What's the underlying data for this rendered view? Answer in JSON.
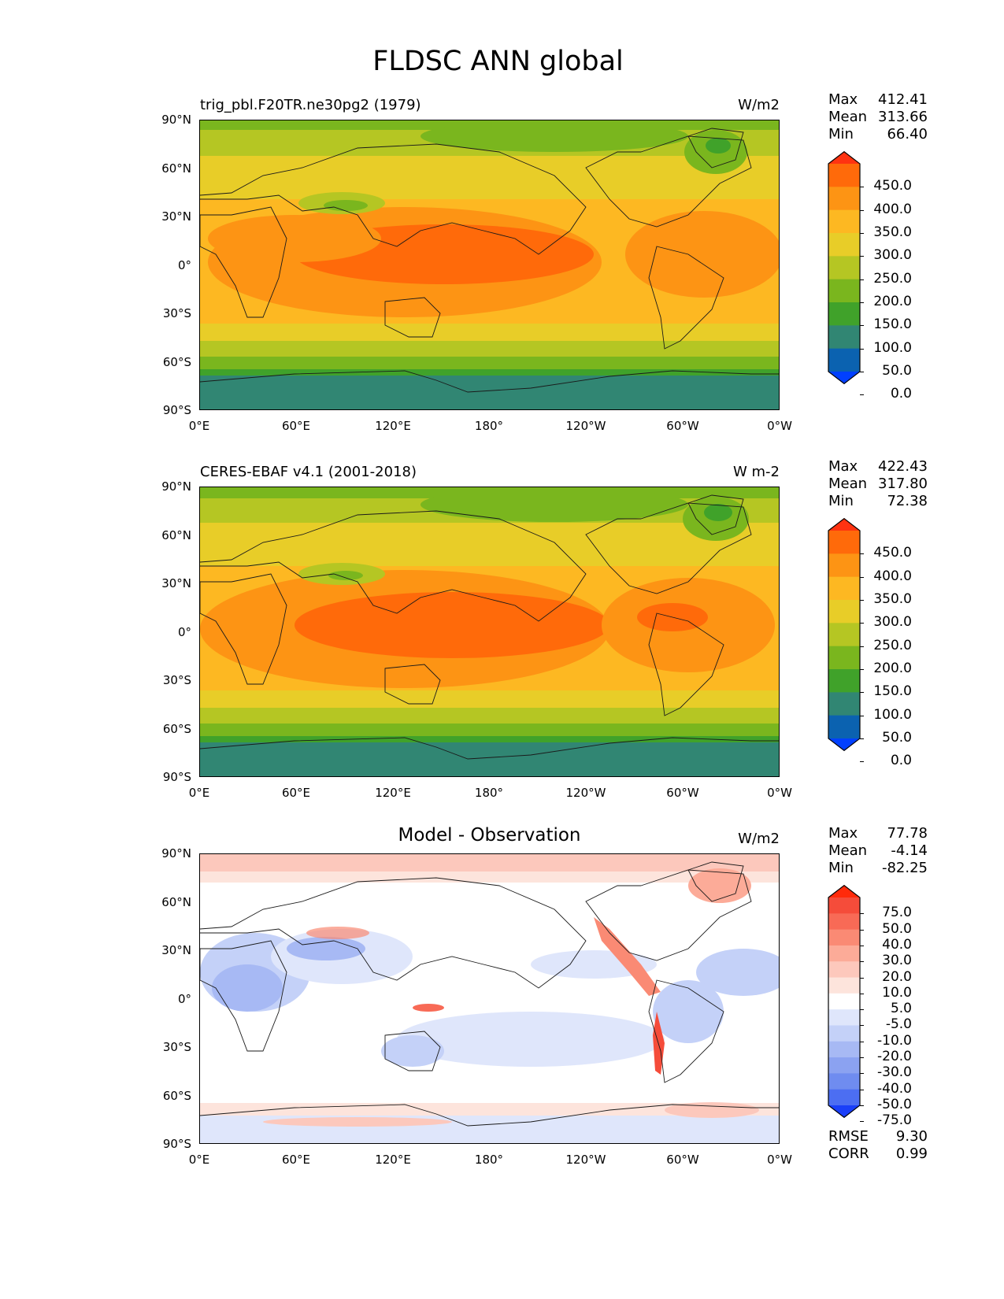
{
  "title": "FLDSC ANN global",
  "x_ticks": [
    "0°E",
    "60°E",
    "120°E",
    "180°",
    "120°W",
    "60°W",
    "0°W"
  ],
  "y_ticks": [
    "90°N",
    "60°N",
    "30°N",
    "0°",
    "30°S",
    "60°S",
    "90°S"
  ],
  "panels": [
    {
      "title_left": "trig_pbl.F20TR.ne30pg2 (1979)",
      "title_center": "",
      "units": "W/m2",
      "stats": {
        "max_label": "Max",
        "max": "412.41",
        "mean_label": "Mean",
        "mean": "313.66",
        "min_label": "Min",
        "min": "66.40"
      },
      "colorbar": {
        "labels": [
          "450.0",
          "400.0",
          "350.0",
          "300.0",
          "250.0",
          "200.0",
          "150.0",
          "100.0",
          "50.0",
          "0.0"
        ],
        "colors": [
          "#ff3311",
          "#ff6a0a",
          "#fd9414",
          "#fdb822",
          "#e8cd28",
          "#b5c623",
          "#7ab61e",
          "#40a22a",
          "#318673",
          "#0b62b0",
          "#0140ff"
        ]
      },
      "extra_stats": null
    },
    {
      "title_left": "CERES-EBAF v4.1 (2001-2018)",
      "title_center": "",
      "units": "W m-2",
      "stats": {
        "max_label": "Max",
        "max": "422.43",
        "mean_label": "Mean",
        "mean": "317.80",
        "min_label": "Min",
        "min": "72.38"
      },
      "colorbar": {
        "labels": [
          "450.0",
          "400.0",
          "350.0",
          "300.0",
          "250.0",
          "200.0",
          "150.0",
          "100.0",
          "50.0",
          "0.0"
        ],
        "colors": [
          "#ff3311",
          "#ff6a0a",
          "#fd9414",
          "#fdb822",
          "#e8cd28",
          "#b5c623",
          "#7ab61e",
          "#40a22a",
          "#318673",
          "#0b62b0",
          "#0140ff"
        ]
      },
      "extra_stats": null
    },
    {
      "title_left": "",
      "title_center": "Model - Observation",
      "units": "W/m2",
      "stats": {
        "max_label": "Max",
        "max": "77.78",
        "mean_label": "Mean",
        "mean": "-4.14",
        "min_label": "Min",
        "min": "-82.25"
      },
      "colorbar": {
        "labels": [
          "75.0",
          "50.0",
          "40.0",
          "30.0",
          "20.0",
          "10.0",
          "5.0",
          "-5.0",
          "-10.0",
          "-20.0",
          "-30.0",
          "-40.0",
          "-50.0",
          "-75.0"
        ],
        "colors": [
          "#ff2a0a",
          "#f54c3a",
          "#f86a56",
          "#fa8a74",
          "#fcab98",
          "#fdc8bc",
          "#fde4dc",
          "#ffffff",
          "#dfe6fb",
          "#c4d1f8",
          "#a7b9f4",
          "#8ba2f1",
          "#6f8cf0",
          "#4c6ef2",
          "#1a3ff9"
        ]
      },
      "extra_stats": {
        "rmse_label": "RMSE",
        "rmse": "9.30",
        "corr_label": "CORR",
        "corr": "0.99"
      }
    }
  ]
}
